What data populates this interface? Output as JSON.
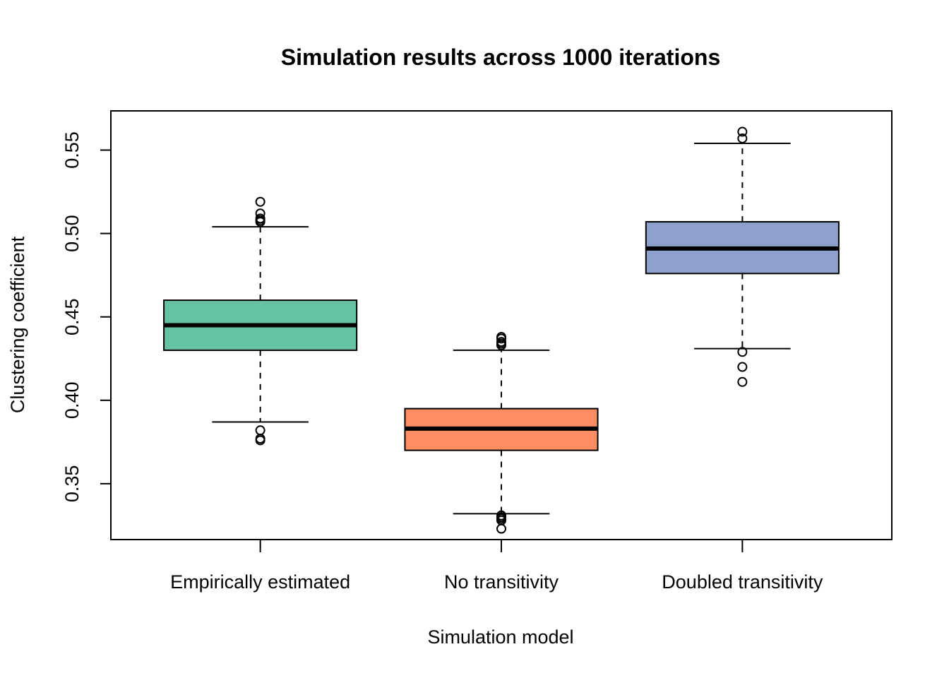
{
  "chart_data": {
    "type": "box",
    "title": "Simulation results across 1000 iterations",
    "xlabel": "Simulation model",
    "ylabel": "Clustering coefficient",
    "ylim": [
      0.3165,
      0.5735
    ],
    "y_ticks": [
      0.35,
      0.4,
      0.45,
      0.5,
      0.55
    ],
    "y_tick_labels": [
      "0.35",
      "0.40",
      "0.45",
      "0.50",
      "0.55"
    ],
    "grid": false,
    "legend": "none",
    "categories": [
      "Empirically estimated",
      "No transitivity",
      "Doubled transitivity"
    ],
    "boxes": [
      {
        "category": "Empirically estimated",
        "color": "#66c2a5",
        "whisker_low": 0.387,
        "q1": 0.43,
        "median": 0.445,
        "q3": 0.46,
        "whisker_high": 0.504,
        "outliers": [
          0.376,
          0.377,
          0.382,
          0.507,
          0.508,
          0.509,
          0.512,
          0.519
        ]
      },
      {
        "category": "No transitivity",
        "color": "#fc8d62",
        "whisker_low": 0.332,
        "q1": 0.37,
        "median": 0.383,
        "q3": 0.395,
        "whisker_high": 0.43,
        "outliers": [
          0.323,
          0.328,
          0.329,
          0.33,
          0.331,
          0.433,
          0.434,
          0.435,
          0.437,
          0.438
        ]
      },
      {
        "category": "Doubled transitivity",
        "color": "#8da0cb",
        "whisker_low": 0.431,
        "q1": 0.476,
        "median": 0.491,
        "q3": 0.507,
        "whisker_high": 0.554,
        "outliers": [
          0.411,
          0.42,
          0.429,
          0.557,
          0.561
        ]
      }
    ]
  }
}
